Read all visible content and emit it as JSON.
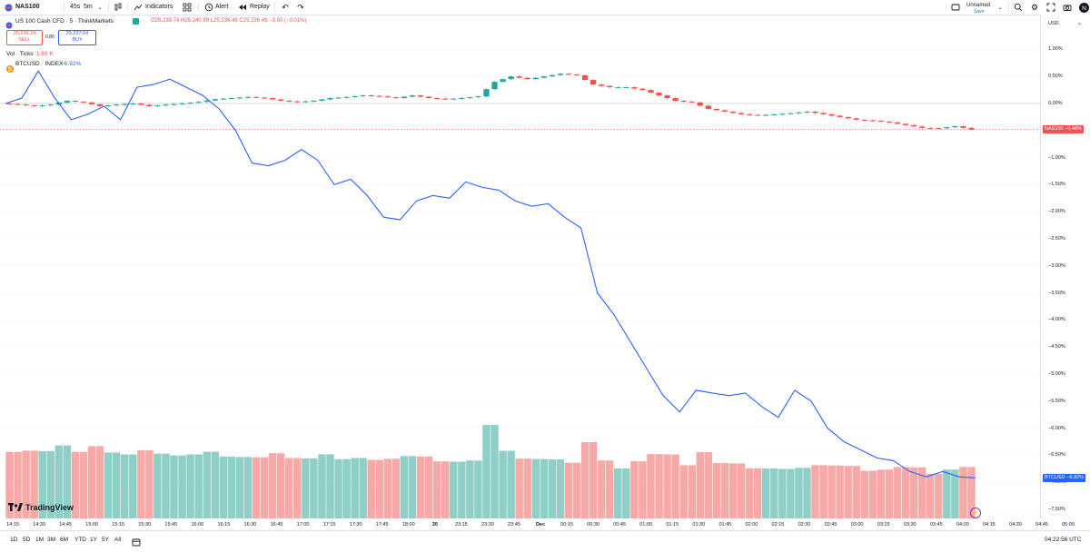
{
  "toolbar": {
    "symbol": "NAS100",
    "interval_a": "45s",
    "interval_b": "5m",
    "indicators": "Indicators",
    "alert": "Alert",
    "replay": "Replay",
    "layout_name": "Unnamed",
    "layout_status": "Save"
  },
  "legend": {
    "title": "US 100 Cash CFD · 5 · ThinkMarkets",
    "ohlc": "O25,239.74 H25,240.99 L25,236.49 C25,236.49 −3.50 (−0.01%)",
    "sell_price": "25,236.24",
    "sell_label": "SELL",
    "spread": "0.80",
    "buy_price": "25,237.04",
    "buy_label": "BUY",
    "vol_label": "Vol · Ticks",
    "vol_value": "1.69 K",
    "btc_label": "BTCUSD · INDEX",
    "btc_value": "−6.92%"
  },
  "axis": {
    "currency": "USD",
    "nas_tag_label": "NAS100",
    "nas_tag_value": "−0.48%",
    "btc_tag_label": "BTCUSD",
    "btc_tag_value": "−6.92%"
  },
  "bottom": {
    "ranges": [
      "1D",
      "5D",
      "1M",
      "3M",
      "6M",
      "YTD",
      "1Y",
      "5Y",
      "All"
    ],
    "clock": "04:22:56 UTC"
  },
  "logo_text": "TradingView",
  "colors": {
    "up": "#26a69a",
    "down": "#ef5350",
    "line": "#2962ff",
    "vol_up": "#8fcfc7",
    "vol_down": "#f7a9a7"
  },
  "chart_data": {
    "type": "line",
    "y_unit": "%",
    "ylim": [
      -7.75,
      1.25
    ],
    "y_ticks": [
      "1.00%",
      "0.50%",
      "0.00%",
      "−1.00%",
      "−1.50%",
      "−2.00%",
      "−2.50%",
      "−3.00%",
      "−3.50%",
      "−4.00%",
      "−4.50%",
      "−5.00%",
      "−5.50%",
      "−6.00%",
      "−6.50%",
      "−7.00%",
      "−7.50%"
    ],
    "x_ticks": [
      "14:15",
      "14:30",
      "14:45",
      "15:00",
      "15:15",
      "15:30",
      "15:45",
      "16:00",
      "16:15",
      "16:30",
      "16:45",
      "17:00",
      "17:15",
      "17:30",
      "17:45",
      "18:00",
      "30",
      "23:15",
      "23:30",
      "23:45",
      "Dec",
      "00:15",
      "00:30",
      "00:45",
      "01:00",
      "01:15",
      "01:30",
      "01:45",
      "02:00",
      "02:15",
      "02:30",
      "02:45",
      "03:00",
      "03:15",
      "03:30",
      "03:45",
      "04:00",
      "04:15",
      "04:30",
      "04:45",
      "05:00"
    ],
    "series": [
      {
        "name": "BTCUSD",
        "values": [
          0.0,
          0.1,
          0.6,
          0.1,
          -0.3,
          -0.2,
          -0.05,
          -0.3,
          0.3,
          0.35,
          0.45,
          0.3,
          0.15,
          -0.1,
          -0.5,
          -1.1,
          -1.15,
          -1.05,
          -0.85,
          -1.05,
          -1.5,
          -1.4,
          -1.7,
          -2.1,
          -2.15,
          -1.8,
          -1.7,
          -1.75,
          -1.45,
          -1.55,
          -1.6,
          -1.8,
          -1.9,
          -1.85,
          -2.1,
          -2.3,
          -3.5,
          -3.9,
          -4.4,
          -4.9,
          -5.4,
          -5.7,
          -5.3,
          -5.35,
          -5.4,
          -5.35,
          -5.6,
          -5.8,
          -5.3,
          -5.5,
          -6.0,
          -6.25,
          -6.4,
          -6.55,
          -6.6,
          -6.8,
          -6.9,
          -6.8,
          -6.9,
          -6.92
        ]
      },
      {
        "name": "NAS100",
        "values": [
          0.0,
          -0.02,
          -0.05,
          -0.02,
          0.05,
          0.02,
          -0.05,
          -0.02,
          0.0,
          -0.05,
          -0.02,
          0.0,
          0.03,
          0.08,
          0.1,
          0.12,
          0.1,
          0.05,
          0.03,
          0.05,
          0.1,
          0.12,
          0.15,
          0.13,
          0.1,
          0.15,
          0.1,
          0.08,
          0.1,
          0.13,
          0.4,
          0.5,
          0.45,
          0.5,
          0.55,
          0.52,
          0.35,
          0.3,
          0.3,
          0.25,
          0.15,
          0.05,
          0.02,
          -0.1,
          -0.15,
          -0.2,
          -0.22,
          -0.2,
          -0.18,
          -0.15,
          -0.2,
          -0.25,
          -0.3,
          -0.32,
          -0.35,
          -0.4,
          -0.45,
          -0.46,
          -0.42,
          -0.48
        ]
      }
    ]
  }
}
